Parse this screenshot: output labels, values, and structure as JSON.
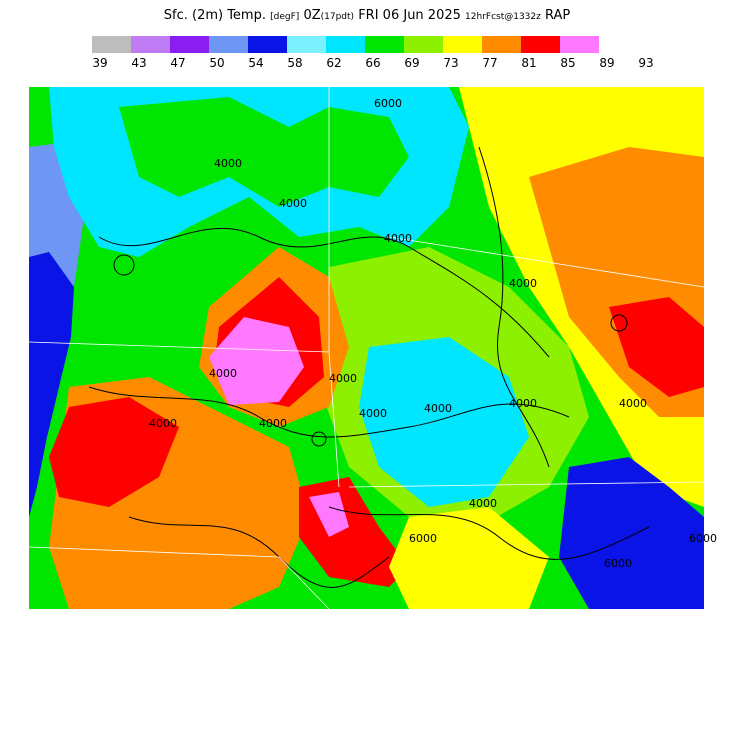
{
  "title": {
    "product": "Sfc. (2m) Temp.",
    "units": "[degF]",
    "valid_z": "0Z",
    "valid_local": "(17pdt)",
    "date": "FRI 06 Jun 2025",
    "forecast": "12hrFcst@1332z",
    "model": "RAP"
  },
  "legend": {
    "ticks": [
      "39",
      "43",
      "47",
      "50",
      "54",
      "58",
      "62",
      "66",
      "69",
      "73",
      "77",
      "81",
      "85",
      "89",
      "93"
    ],
    "colors": [
      "#bdbdbd",
      "#c07cf5",
      "#8a1ef0",
      "#6e96f5",
      "#0a14e6",
      "#7df0ff",
      "#00e6ff",
      "#00e600",
      "#8cf000",
      "#ffff00",
      "#ff8c00",
      "#ff0000",
      "#ff78ff"
    ]
  },
  "map": {
    "contour_labels": [
      "4000",
      "4000",
      "4000",
      "4000",
      "4000",
      "4000",
      "4000",
      "4000",
      "4000",
      "4000",
      "4000",
      "4000",
      "4000",
      "6000",
      "6000",
      "6000",
      "6000"
    ],
    "region_colors": {
      "ocean": "#6e96f5",
      "ocean_deep": "#0a14e6",
      "cool": "#00e6ff",
      "mild": "#00e600",
      "warm": "#8cf000",
      "hot": "#ffff00",
      "very_hot": "#ff8c00",
      "extreme": "#ff0000",
      "max": "#ff78ff"
    }
  }
}
